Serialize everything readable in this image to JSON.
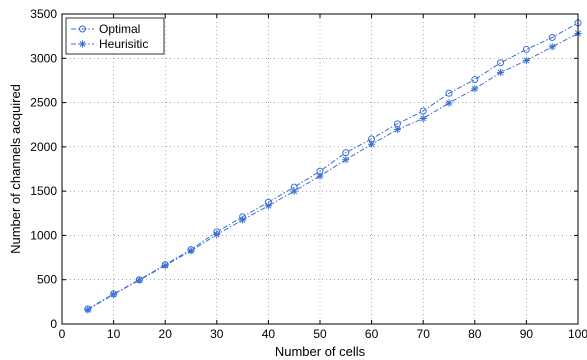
{
  "chart_data": {
    "type": "line",
    "xlabel": "Number of cells",
    "ylabel": "Number of channels acquired",
    "xlim": [
      0,
      100
    ],
    "ylim": [
      0,
      3500
    ],
    "xticks": [
      0,
      10,
      20,
      30,
      40,
      50,
      60,
      70,
      80,
      90,
      100
    ],
    "yticks": [
      0,
      500,
      1000,
      1500,
      2000,
      2500,
      3000,
      3500
    ],
    "grid": true,
    "legend_position": "top-left",
    "x": [
      5,
      10,
      15,
      20,
      25,
      30,
      35,
      40,
      45,
      50,
      55,
      60,
      65,
      70,
      75,
      80,
      85,
      90,
      95,
      100
    ],
    "series": [
      {
        "name": "Optimal",
        "marker": "circle",
        "color": "#3a6fd4",
        "values": [
          170,
          340,
          500,
          670,
          840,
          1040,
          1210,
          1375,
          1545,
          1725,
          1935,
          2090,
          2260,
          2405,
          2605,
          2760,
          2950,
          3100,
          3235,
          3400
        ]
      },
      {
        "name": "Heurisitic",
        "marker": "star",
        "color": "#3a6fd4",
        "values": [
          160,
          335,
          495,
          660,
          825,
          1010,
          1175,
          1335,
          1500,
          1670,
          1855,
          2030,
          2195,
          2320,
          2495,
          2655,
          2840,
          2975,
          3130,
          3280
        ]
      }
    ]
  }
}
